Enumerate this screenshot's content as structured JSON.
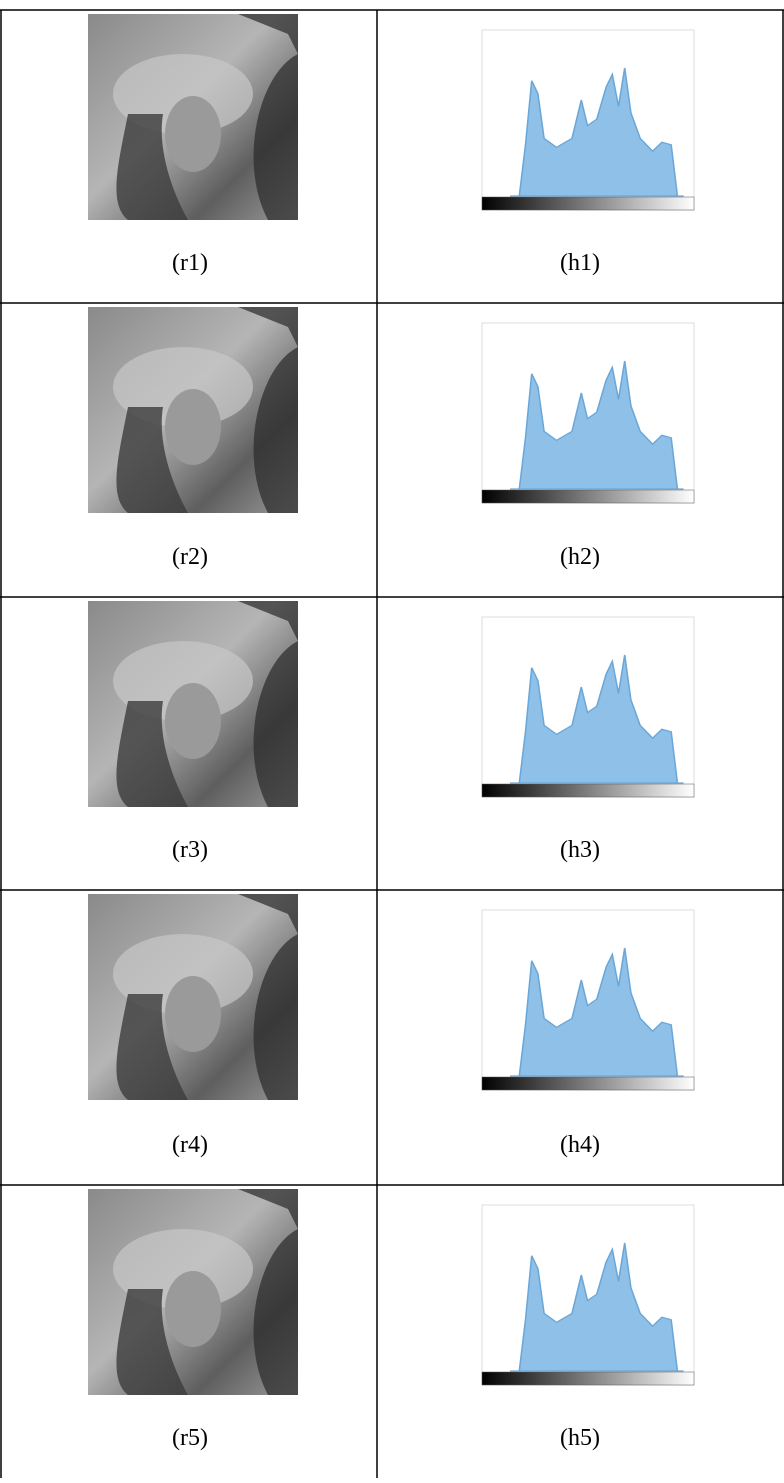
{
  "table": {
    "rows": [
      [
        "(r1)",
        "(h1)"
      ],
      [
        "(r2)",
        "(h2)"
      ],
      [
        "(r3)",
        "(h3)"
      ],
      [
        "(r4)",
        "(h4)"
      ],
      [
        "(r5)",
        "(h5)"
      ]
    ]
  }
}
